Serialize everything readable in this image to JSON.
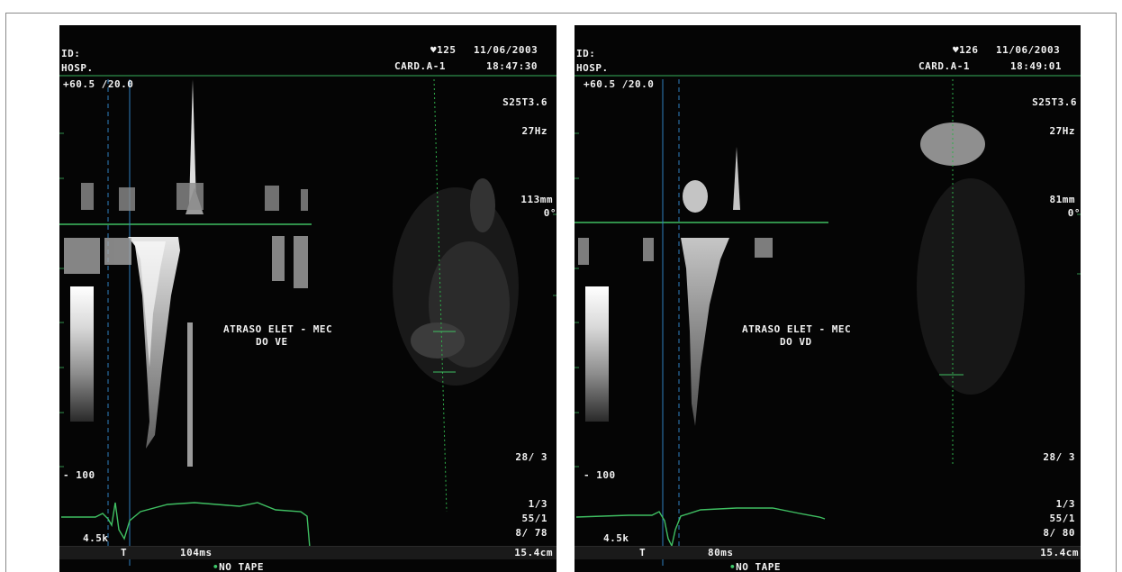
{
  "panels": [
    {
      "id_label": "ID:",
      "hosp_label": "HOSP.",
      "heart_rate": "♥125",
      "date": "11/06/2003",
      "probe": "CARD.A-1",
      "time": "18:47:30",
      "scale_text": "+60.5 /20.0",
      "transducer": "S25T3.6",
      "frame_rate": "27Hz",
      "depth": "113mm",
      "angle": "0°",
      "annotation_line1": "ATRASO ELET - MEC",
      "annotation_line2": "DO VE",
      "gain": "28/ 3",
      "velocity_min": "- 100",
      "param1": "1/3",
      "param2": "55/1",
      "param3": "8/ 78",
      "freq": "4.5k",
      "marker": "T",
      "interval": "104ms",
      "depth_cm": "15.4cm",
      "tape": "NO TAPE"
    },
    {
      "id_label": "ID:",
      "hosp_label": "HOSP.",
      "heart_rate": "♥126",
      "date": "11/06/2003",
      "probe": "CARD.A-1",
      "time": "18:49:01",
      "scale_text": "+60.5 /20.0",
      "transducer": "S25T3.6",
      "frame_rate": "27Hz",
      "depth": "81mm",
      "angle": "0°",
      "annotation_line1": "ATRASO ELET - MEC",
      "annotation_line2": "DO VD",
      "gain": "28/ 3",
      "velocity_min": "- 100",
      "param1": "1/3",
      "param2": "55/1",
      "param3": "8/ 80",
      "freq": "4.5k",
      "marker": "T",
      "interval": "80ms",
      "depth_cm": "15.4cm",
      "tape": "NO TAPE"
    }
  ]
}
